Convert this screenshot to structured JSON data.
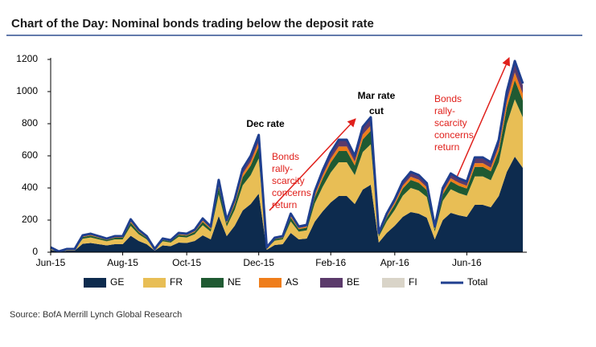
{
  "chart_data": {
    "type": "stacked_area",
    "title": "Chart of the Day: Nominal bonds trading below the deposit rate",
    "source": "Source: BofA Merrill Lynch Global Research",
    "annotations": [
      {
        "lines": [
          "Dec rate"
        ],
        "style": "bold"
      },
      {
        "lines": [
          "Mar rate",
          "cut"
        ],
        "style": "bold"
      },
      {
        "lines": [
          "Bonds",
          "rally-",
          "scarcity",
          "concerns",
          "return"
        ],
        "style": "red"
      },
      {
        "lines": [
          "Bonds",
          "rally-",
          "scarcity",
          "concerns",
          "return"
        ],
        "style": "red"
      }
    ],
    "categories": [
      "Jun-15",
      null,
      null,
      null,
      null,
      null,
      null,
      null,
      null,
      "Aug-15",
      null,
      null,
      null,
      null,
      null,
      null,
      null,
      "Oct-15",
      null,
      null,
      null,
      null,
      null,
      null,
      null,
      null,
      "Dec-15",
      null,
      null,
      null,
      null,
      null,
      null,
      null,
      null,
      "Feb-16",
      null,
      null,
      null,
      null,
      null,
      null,
      null,
      "Apr-16",
      null,
      null,
      null,
      null,
      null,
      null,
      null,
      null,
      "Jun-16",
      null,
      null,
      null,
      null,
      null,
      null,
      null
    ],
    "series": [
      {
        "name": "GE",
        "color": "#0d2b4e",
        "values": [
          15,
          2.5,
          10,
          10,
          52.5,
          57.5,
          50,
          42.5,
          50,
          50,
          102.5,
          70,
          50,
          10,
          42.5,
          37.5,
          60,
          57.5,
          70,
          105,
          80,
          225,
          100,
          165,
          260,
          300,
          365,
          15,
          45,
          50,
          120,
          80,
          85,
          190,
          255,
          310,
          350,
          350,
          300,
          390,
          420,
          60,
          120,
          165,
          220,
          250,
          240,
          215,
          80,
          200,
          245,
          230,
          220,
          295,
          295,
          280,
          350,
          500,
          595,
          525
        ]
      },
      {
        "name": "FR",
        "color": "#e8be55",
        "values": [
          9,
          1.5,
          6,
          6,
          31.5,
          34.5,
          30,
          25.5,
          30,
          30,
          61.5,
          42,
          30,
          6,
          25.5,
          22.5,
          36,
          34.5,
          42,
          63,
          48,
          135,
          60,
          99,
          156,
          180,
          219,
          9,
          27,
          30,
          72,
          48,
          51,
          114,
          153,
          186,
          210,
          210,
          180,
          234,
          252,
          36,
          72,
          99,
          132,
          150,
          144,
          129,
          48,
          120,
          147,
          138,
          132,
          177,
          177,
          168,
          210,
          300,
          357,
          315
        ]
      },
      {
        "name": "NE",
        "color": "#1f5a32",
        "values": [
          3,
          0.5,
          2,
          2,
          10.5,
          11.5,
          10,
          8.5,
          10,
          10,
          20.5,
          14,
          10,
          2,
          8.5,
          7.5,
          12,
          11.5,
          14,
          21,
          16,
          45,
          20,
          33,
          52,
          60,
          73,
          3,
          9,
          10,
          24,
          16,
          17,
          38,
          51,
          62,
          70,
          70,
          60,
          78,
          84,
          12,
          24,
          33,
          44,
          50,
          48,
          43,
          16,
          40,
          49,
          46,
          44,
          59,
          59,
          56,
          70,
          100,
          119,
          105
        ]
      },
      {
        "name": "AS",
        "color": "#ef7d1a",
        "values": [
          1.2,
          0.2,
          0.8,
          0.8,
          4.2,
          4.6,
          4,
          3.4,
          4,
          4,
          8.2,
          5.6,
          4,
          0.8,
          3.4,
          3,
          4.8,
          4.6,
          5.6,
          8.4,
          6.4,
          18,
          8,
          13.2,
          20.8,
          24,
          29.2,
          1.2,
          3.6,
          4,
          9.6,
          6.4,
          6.8,
          15.2,
          20.4,
          24.8,
          28,
          28,
          24,
          31.2,
          33.6,
          4.8,
          9.6,
          13.2,
          17.6,
          20,
          19.2,
          17.2,
          6.4,
          16,
          19.6,
          18.4,
          17.6,
          23.6,
          23.6,
          22.4,
          28,
          40,
          47.6,
          42
        ]
      },
      {
        "name": "BE",
        "color": "#5b3a6b",
        "values": [
          1.5,
          0.25,
          1,
          1,
          5.25,
          5.75,
          5,
          4.25,
          5,
          5,
          10.25,
          7,
          5,
          1,
          4.25,
          3.75,
          6,
          5.75,
          7,
          10.5,
          8,
          22.5,
          10,
          16.5,
          26,
          30,
          36.5,
          1.5,
          4.5,
          5,
          12,
          8,
          8.5,
          19,
          25.5,
          31,
          35,
          35,
          30,
          39,
          42,
          6,
          12,
          16.5,
          22,
          25,
          24,
          21.5,
          8,
          20,
          24.5,
          23,
          22,
          29.5,
          29.5,
          28,
          35,
          50,
          59.5,
          52.5
        ]
      },
      {
        "name": "FI",
        "color": "#d9d4c8",
        "values": [
          0.3,
          0.05,
          0.2,
          0.2,
          1.05,
          1.15,
          1,
          0.85,
          1,
          1,
          2.05,
          1.4,
          1,
          0.2,
          0.85,
          0.75,
          1.2,
          1.15,
          1.4,
          2.1,
          1.6,
          4.5,
          2,
          3.3,
          5.2,
          6,
          7.3,
          0.3,
          0.9,
          1,
          2.4,
          1.6,
          1.7,
          3.8,
          5.1,
          6.2,
          7,
          7,
          6,
          7.8,
          8.4,
          1.2,
          2.4,
          3.3,
          4.4,
          5,
          4.8,
          4.3,
          1.6,
          4,
          4.9,
          4.6,
          4.4,
          5.9,
          5.9,
          5.6,
          7,
          10,
          11.9,
          10.5
        ]
      }
    ],
    "total": {
      "name": "Total",
      "color": "#1f3f8f",
      "values": [
        30,
        5,
        20,
        20,
        105,
        115,
        100,
        85,
        100,
        100,
        205,
        140,
        100,
        20,
        85,
        75,
        120,
        115,
        140,
        210,
        160,
        450,
        200,
        330,
        520,
        600,
        730,
        30,
        90,
        100,
        240,
        160,
        170,
        380,
        510,
        620,
        700,
        700,
        600,
        780,
        840,
        120,
        240,
        330,
        440,
        500,
        480,
        430,
        160,
        400,
        490,
        460,
        440,
        590,
        590,
        560,
        700,
        1000,
        1190,
        1050
      ]
    },
    "ylim": [
      0,
      1200
    ],
    "yticks": [
      0,
      200,
      400,
      600,
      800,
      1000,
      1200
    ],
    "grid": false
  }
}
